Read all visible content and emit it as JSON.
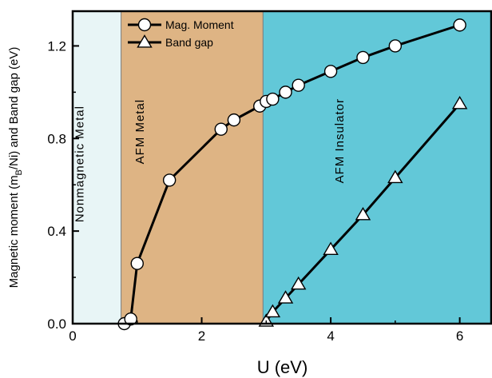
{
  "chart_data": {
    "type": "line",
    "xlabel": "U (eV)",
    "ylabel": "Magnetic moment (m_B/Ni) and Band gap (eV)",
    "ylabel_parts": {
      "main": "Magnetic moment (m",
      "sub": "B",
      "rest": "/Ni) and Band gap (eV)"
    },
    "xlim": [
      0,
      6.5
    ],
    "ylim": [
      0,
      1.35
    ],
    "xticks": [
      0,
      2,
      4,
      6
    ],
    "xtick_labels": [
      "0",
      "2",
      "4",
      "6"
    ],
    "yticks": [
      0.0,
      0.4,
      0.8,
      1.2
    ],
    "ytick_labels": [
      "0.0",
      "0.4",
      "0.8",
      "1.2"
    ],
    "grid": false,
    "legend_position": "top-left",
    "regions": [
      {
        "label": "Nonmagnetic Metal",
        "x_range": [
          0,
          0.75
        ],
        "color": "#e8f5f6"
      },
      {
        "label": "AFM Metal",
        "x_range": [
          0.75,
          2.95
        ],
        "color": "#deb484"
      },
      {
        "label": "AFM Insulator",
        "x_range": [
          2.95,
          6.5
        ],
        "color": "#62c8d8"
      }
    ],
    "series": [
      {
        "name": "Mag. Moment",
        "marker": "circle",
        "x": [
          0.8,
          0.9,
          1.0,
          1.5,
          2.3,
          2.5,
          2.9,
          3.0,
          3.1,
          3.3,
          3.5,
          4.0,
          4.5,
          5.0,
          6.0
        ],
        "y": [
          0.0,
          0.02,
          0.26,
          0.62,
          0.84,
          0.88,
          0.94,
          0.96,
          0.97,
          1.0,
          1.03,
          1.09,
          1.15,
          1.2,
          1.29
        ]
      },
      {
        "name": "Band gap",
        "marker": "triangle",
        "x": [
          3.0,
          3.1,
          3.3,
          3.5,
          4.0,
          4.5,
          5.0,
          6.0
        ],
        "y": [
          0.01,
          0.05,
          0.11,
          0.17,
          0.32,
          0.47,
          0.63,
          0.95
        ]
      }
    ]
  }
}
